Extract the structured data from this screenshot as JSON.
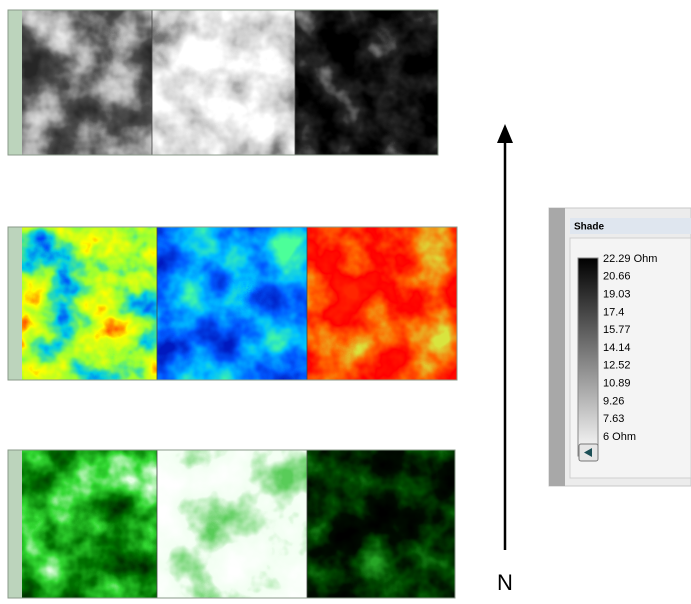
{
  "legend": {
    "title": "Shade",
    "labels": [
      "22.29 Ohm",
      "20.66",
      "19.03",
      "17.4",
      "15.77",
      "14.14",
      "12.52",
      "10.89",
      "9.26",
      "7.63",
      "6 Ohm"
    ]
  },
  "compass": {
    "label": "N"
  }
}
